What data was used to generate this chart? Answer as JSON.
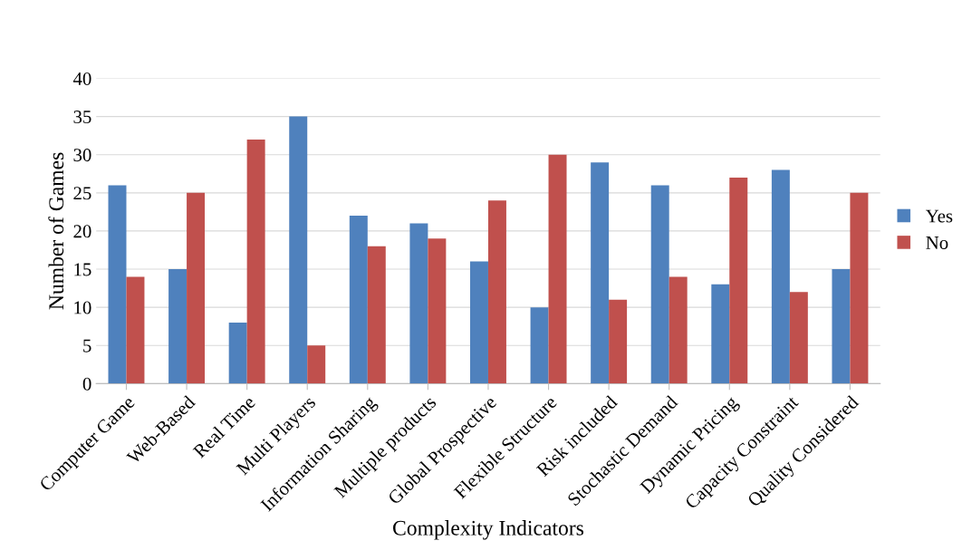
{
  "chart_data": {
    "type": "bar",
    "xlabel": "Complexity Indicators",
    "ylabel": "Number of Games",
    "categories": [
      "Computer Game",
      "Web-Based",
      "Real Time",
      "Multi Players",
      "Information Sharing",
      "Multiple products",
      "Global Prospective",
      "Flexible Structure",
      "Risk included",
      "Stochastic Demand",
      "Dynamic Pricing",
      "Capacity Constraint",
      "Quality Considered"
    ],
    "series": [
      {
        "name": "Yes",
        "color": "#4f81bd",
        "values": [
          26,
          15,
          8,
          35,
          22,
          21,
          16,
          10,
          29,
          26,
          13,
          28,
          15
        ]
      },
      {
        "name": "No",
        "color": "#c0504d",
        "values": [
          14,
          25,
          32,
          5,
          18,
          19,
          24,
          30,
          11,
          14,
          27,
          12,
          25
        ]
      }
    ],
    "ylim": [
      0,
      40
    ],
    "yticks": [
      0,
      5,
      10,
      15,
      20,
      25,
      30,
      35,
      40
    ],
    "grid": "y",
    "legend": "right"
  }
}
